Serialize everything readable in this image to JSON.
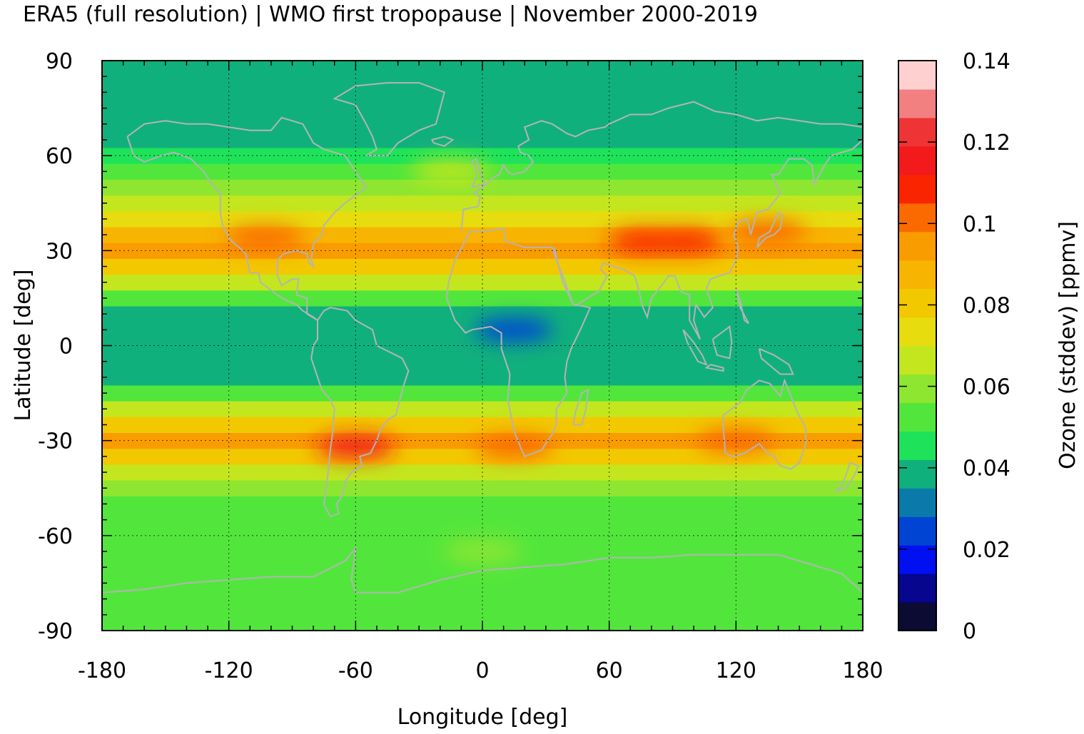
{
  "chart_data": {
    "type": "heatmap",
    "title": "ERA5 (full resolution) | WMO first tropopause | November 2000-2019",
    "xlabel": "Longitude [deg]",
    "ylabel": "Latitude [deg]",
    "colorbar_label": "Ozone (stddev) [ppmv]",
    "xlim": [
      -180,
      180
    ],
    "ylim": [
      -90,
      90
    ],
    "x_ticks": [
      -180,
      -120,
      -60,
      0,
      60,
      120,
      180
    ],
    "y_ticks": [
      -90,
      -60,
      -30,
      0,
      30,
      60,
      90
    ],
    "x_tick_labels": [
      "-180",
      "-120",
      "-60",
      "0",
      "60",
      "120",
      "180"
    ],
    "y_tick_labels": [
      "-90",
      "-60",
      "-30",
      "0",
      "30",
      "60",
      "90"
    ],
    "colorbar_range": [
      0,
      0.14
    ],
    "colorbar_ticks": [
      0,
      0.02,
      0.04,
      0.06,
      0.08,
      0.1,
      0.12,
      0.14
    ],
    "colorbar_tick_labels": [
      "0",
      "0.02",
      "0.04",
      "0.06",
      "0.08",
      "0.1",
      "0.12",
      "0.14"
    ],
    "colorbar_colors": [
      "#0b0b33",
      "#06068f",
      "#0010f0",
      "#0044d4",
      "#0a7aaa",
      "#10b07c",
      "#1ee35a",
      "#52e63c",
      "#8ee630",
      "#c4e61e",
      "#e6dc0e",
      "#f2c800",
      "#f7b400",
      "#f99c00",
      "#fa6a00",
      "#fa2400",
      "#f21a1a",
      "#ee3434",
      "#f28080",
      "#ffd0d0"
    ],
    "grid": true,
    "coastline_color": "#b4b4b4",
    "latitude_profile": [
      {
        "lat": -90,
        "value": 0.052
      },
      {
        "lat": -80,
        "value": 0.054
      },
      {
        "lat": -70,
        "value": 0.055
      },
      {
        "lat": -60,
        "value": 0.052
      },
      {
        "lat": -50,
        "value": 0.052
      },
      {
        "lat": -45,
        "value": 0.057
      },
      {
        "lat": -40,
        "value": 0.068
      },
      {
        "lat": -35,
        "value": 0.083
      },
      {
        "lat": -30,
        "value": 0.094
      },
      {
        "lat": -25,
        "value": 0.078
      },
      {
        "lat": -20,
        "value": 0.063
      },
      {
        "lat": -15,
        "value": 0.05
      },
      {
        "lat": -10,
        "value": 0.041
      },
      {
        "lat": -5,
        "value": 0.036
      },
      {
        "lat": 0,
        "value": 0.035
      },
      {
        "lat": 5,
        "value": 0.036
      },
      {
        "lat": 10,
        "value": 0.041
      },
      {
        "lat": 15,
        "value": 0.052
      },
      {
        "lat": 20,
        "value": 0.068
      },
      {
        "lat": 25,
        "value": 0.083
      },
      {
        "lat": 30,
        "value": 0.095
      },
      {
        "lat": 35,
        "value": 0.088
      },
      {
        "lat": 40,
        "value": 0.076
      },
      {
        "lat": 45,
        "value": 0.066
      },
      {
        "lat": 50,
        "value": 0.058
      },
      {
        "lat": 55,
        "value": 0.05
      },
      {
        "lat": 60,
        "value": 0.044
      },
      {
        "lat": 65,
        "value": 0.04
      },
      {
        "lat": 70,
        "value": 0.036
      },
      {
        "lat": 75,
        "value": 0.035
      },
      {
        "lat": 80,
        "value": 0.035
      },
      {
        "lat": 85,
        "value": 0.036
      },
      {
        "lat": 90,
        "value": 0.037
      }
    ],
    "hotspots": [
      {
        "lon": -103,
        "lat": 34,
        "value": 0.1
      },
      {
        "lon": 78,
        "lat": 33,
        "value": 0.112
      },
      {
        "lon": 95,
        "lat": 33,
        "value": 0.11
      },
      {
        "lon": 135,
        "lat": 36,
        "value": 0.1
      },
      {
        "lon": -60,
        "lat": -32,
        "value": 0.118
      },
      {
        "lon": 15,
        "lat": -32,
        "value": 0.1
      },
      {
        "lon": 120,
        "lat": -30,
        "value": 0.1
      },
      {
        "lon": 15,
        "lat": 5,
        "value": 0.026
      },
      {
        "lon": -15,
        "lat": 55,
        "value": 0.068
      },
      {
        "lon": 0,
        "lat": -65,
        "value": 0.06
      }
    ]
  }
}
